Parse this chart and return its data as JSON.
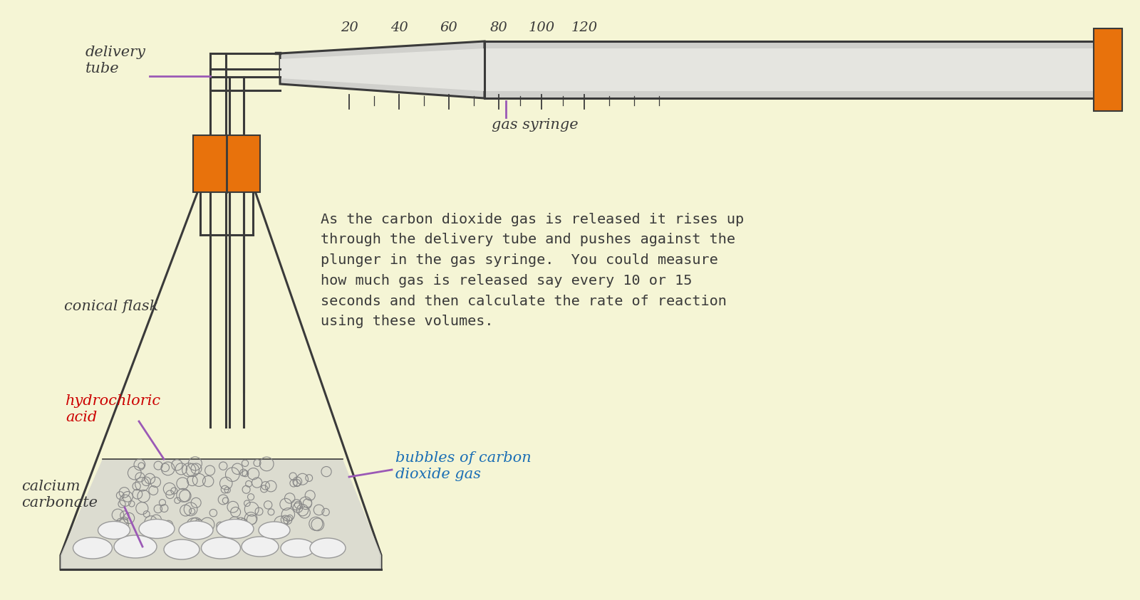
{
  "bg_color": "#f5f5d5",
  "dark_line": "#3a3a3a",
  "orange_color": "#e8720c",
  "gray_fill": "#d0d0cc",
  "gray_inner": "#e5e5e0",
  "purple_color": "#9b59b6",
  "red_color": "#cc0000",
  "blue_color": "#1a6eb5",
  "label_delivery_tube": "delivery\ntube",
  "label_conical_flask": "conical flask",
  "label_gas_syringe": "gas syringe",
  "label_hydrochloric": "hydrochloric\nacid",
  "label_calcium": "calcium\ncarbonate",
  "label_bubbles": "bubbles of carbon\ndioxide gas",
  "main_text": "As the carbon dioxide gas is released it rises up\nthrough the delivery tube and pushes against the\nplunger in the gas syringe.  You could measure\nhow much gas is released say every 10 or 15\nseconds and then calculate the rate of reaction\nusing these volumes.",
  "scale_labels": [
    "20",
    "40",
    "60",
    "80",
    "100",
    "120"
  ],
  "figsize": [
    16.0,
    8.43
  ],
  "dpi": 100
}
